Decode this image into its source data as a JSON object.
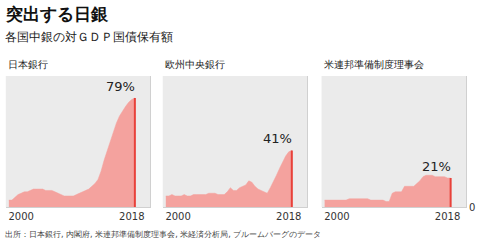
{
  "title": "突出する日銀",
  "subtitle": "各国中銀の対ＧＤＰ国債保有額",
  "source": "出所：日本銀行, 内閣府, 米連邦準備制度理事会, 米経済分析局, ブルームバーグのデータ",
  "chart_data": [
    {
      "type": "area",
      "title": "日本銀行",
      "color": "#f4a29e",
      "grid": false,
      "tick_labels": "x",
      "x": [
        1998,
        1998.5,
        1999,
        1999.5,
        2000,
        2000.5,
        2001,
        2001.5,
        2002,
        2002.5,
        2003,
        2003.5,
        2004,
        2004.5,
        2005,
        2005.5,
        2006,
        2006.5,
        2007,
        2007.5,
        2008,
        2008.5,
        2009,
        2009.5,
        2010,
        2010.5,
        2011,
        2011.5,
        2012,
        2012.5,
        2013,
        2013.5,
        2014,
        2014.5,
        2015,
        2015.5,
        2016,
        2016.5,
        2017,
        2017.5,
        2018,
        2018.5
      ],
      "values": [
        5,
        5,
        7,
        9,
        10,
        11,
        11,
        12,
        13,
        13,
        13,
        13,
        12,
        12,
        12,
        11,
        10,
        9,
        8,
        8,
        8,
        8,
        9,
        10,
        11,
        12,
        13,
        15,
        17,
        20,
        26,
        34,
        41,
        48,
        55,
        61,
        66,
        70,
        73,
        76,
        78,
        79
      ],
      "value_labels": [
        null,
        null,
        null,
        null,
        null,
        null,
        null,
        null,
        null,
        null,
        null,
        null,
        null,
        null,
        null,
        null,
        null,
        null,
        null,
        null,
        null,
        null,
        null,
        null,
        null,
        null,
        null,
        null,
        null,
        null,
        null,
        null,
        null,
        null,
        null,
        null,
        null,
        null,
        null,
        null,
        null,
        "79%"
      ],
      "xlim": [
        1997.5,
        2021
      ],
      "xticks": [
        2000,
        2018
      ],
      "ylim": [
        0,
        95
      ],
      "yticks": [
        0
      ]
    },
    {
      "type": "area",
      "title": "欧州中央銀行",
      "color": "#f4a29e",
      "grid": false,
      "tick_labels": "x",
      "x": [
        1998,
        1998.5,
        1999,
        1999.5,
        2000,
        2000.5,
        2001,
        2001.5,
        2002,
        2002.5,
        2003,
        2003.5,
        2004,
        2004.5,
        2005,
        2005.5,
        2006,
        2006.5,
        2007,
        2007.5,
        2008,
        2008.5,
        2009,
        2009.5,
        2010,
        2010.5,
        2011,
        2011.5,
        2012,
        2012.5,
        2013,
        2013.5,
        2014,
        2014.5,
        2015,
        2015.5,
        2016,
        2016.5,
        2017,
        2017.5,
        2018,
        2018.5
      ],
      "values": [
        8,
        8,
        9,
        8,
        8,
        8,
        9,
        8,
        8,
        9,
        9,
        9,
        9,
        9,
        10,
        10,
        10,
        9,
        9,
        9,
        11,
        14,
        12,
        12,
        14,
        15,
        16,
        19,
        18,
        15,
        13,
        12,
        11,
        10,
        14,
        18,
        23,
        28,
        33,
        37,
        40,
        41
      ],
      "value_labels": [
        null,
        null,
        null,
        null,
        null,
        null,
        null,
        null,
        null,
        null,
        null,
        null,
        null,
        null,
        null,
        null,
        null,
        null,
        null,
        null,
        null,
        null,
        null,
        null,
        null,
        null,
        null,
        null,
        null,
        null,
        null,
        null,
        null,
        null,
        null,
        null,
        null,
        null,
        null,
        null,
        null,
        "41%"
      ],
      "xlim": [
        1997.5,
        2021
      ],
      "xticks": [
        2000,
        2018
      ],
      "ylim": [
        0,
        95
      ],
      "yticks": [
        0
      ]
    },
    {
      "type": "area",
      "title": "米連邦準備制度理事会",
      "color": "#f4a29e",
      "grid": false,
      "x": [
        1998,
        1998.5,
        1999,
        1999.5,
        2000,
        2000.5,
        2001,
        2001.5,
        2002,
        2002.5,
        2003,
        2003.5,
        2004,
        2004.5,
        2005,
        2005.5,
        2006,
        2006.5,
        2007,
        2007.5,
        2008,
        2008.5,
        2009,
        2009.5,
        2010,
        2010.5,
        2011,
        2011.5,
        2012,
        2012.5,
        2013,
        2013.5,
        2014,
        2014.5,
        2015,
        2015.5,
        2016,
        2016.5,
        2017,
        2017.5,
        2018,
        2018.5
      ],
      "values": [
        5,
        5,
        5,
        5,
        5,
        5,
        5,
        5,
        6,
        6,
        6,
        6,
        6,
        6,
        6,
        5,
        5,
        5,
        5,
        5,
        4,
        4,
        10,
        11,
        11,
        11,
        15,
        15,
        15,
        15,
        17,
        19,
        22,
        23,
        23,
        23,
        22,
        22,
        22,
        22,
        21,
        21
      ],
      "value_labels": [
        null,
        null,
        null,
        null,
        null,
        null,
        null,
        null,
        null,
        null,
        null,
        null,
        null,
        null,
        null,
        null,
        null,
        null,
        null,
        null,
        null,
        null,
        null,
        null,
        null,
        null,
        null,
        null,
        null,
        null,
        null,
        null,
        null,
        null,
        null,
        null,
        null,
        null,
        null,
        null,
        null,
        "21%"
      ],
      "xlim": [
        1997.5,
        2021
      ],
      "xticks": [
        2000,
        2018
      ],
      "ylim": [
        0,
        95
      ],
      "yticks": [
        0
      ]
    }
  ]
}
